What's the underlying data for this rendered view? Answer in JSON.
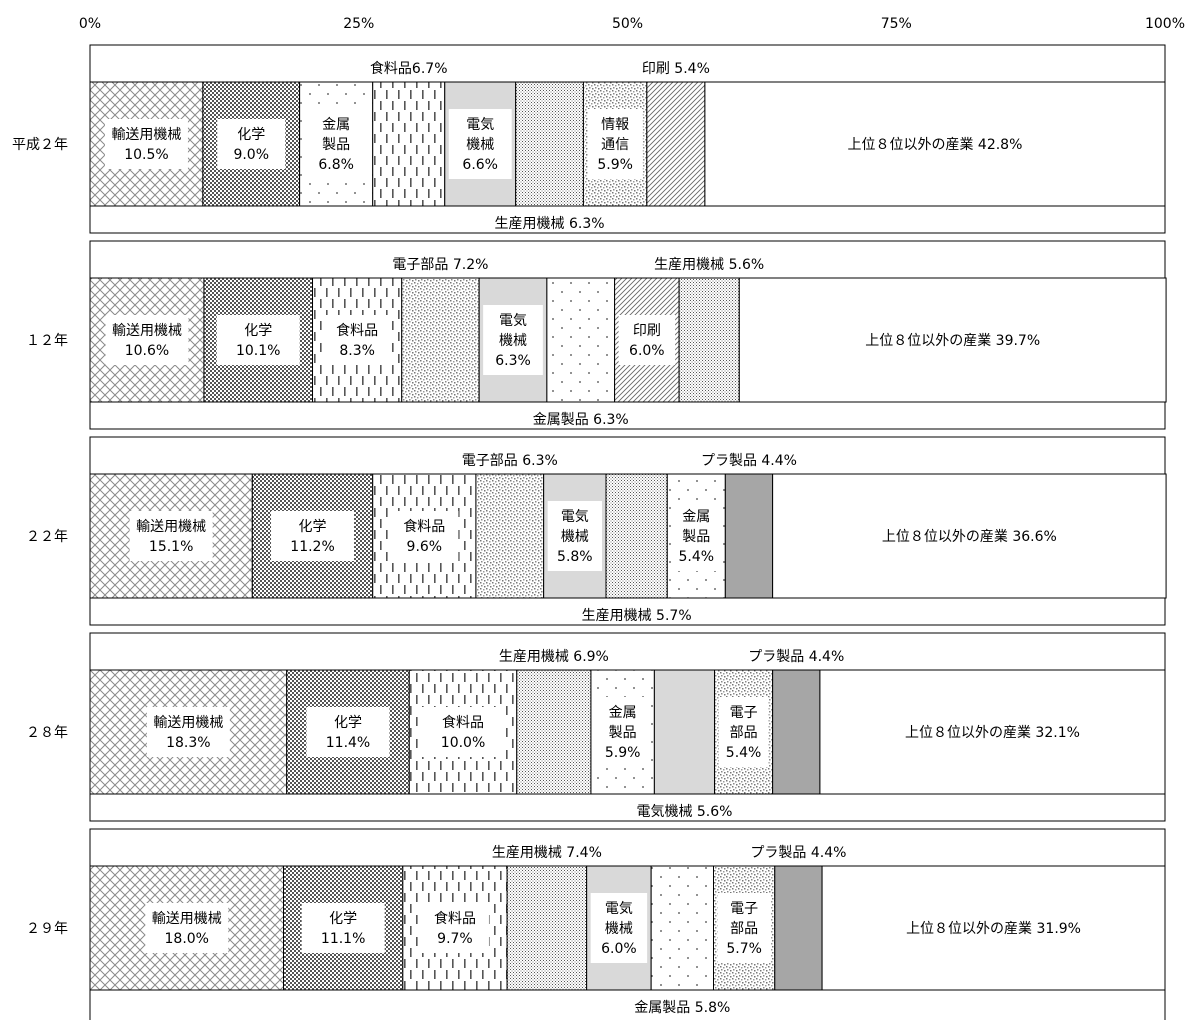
{
  "chart_data": {
    "type": "bar",
    "orientation": "horizontal",
    "stacked": true,
    "x_ticks": [
      "0%",
      "25%",
      "50%",
      "75%",
      "100%"
    ],
    "xlim": [
      0,
      100
    ],
    "grid": false,
    "legend": "none",
    "rows": [
      {
        "label": "平成２年",
        "segments": [
          {
            "name": "輸送用機械",
            "value": 10.5,
            "pattern": "diamond",
            "label_lines": [
              "輸送用機械",
              "10.5%"
            ]
          },
          {
            "name": "化学",
            "value": 9.0,
            "pattern": "checker",
            "label_lines": [
              "化学",
              "9.0%"
            ]
          },
          {
            "name": "金属製品",
            "value": 6.8,
            "pattern": "sparse",
            "label_lines": [
              "金属",
              "製品",
              "6.8%"
            ]
          },
          {
            "name": "食料品",
            "value": 6.7,
            "pattern": "dash",
            "label_lines": [],
            "outside_label": "食料品6.7%",
            "outside_pos": "top"
          },
          {
            "name": "電気機械",
            "value": 6.6,
            "pattern": "gray",
            "label_lines": [
              "電気",
              "機械",
              "6.6%"
            ]
          },
          {
            "name": "生産用機械",
            "value": 6.3,
            "pattern": "finedot",
            "label_lines": [],
            "outside_label": "生産用機械 6.3%",
            "outside_pos": "bottom"
          },
          {
            "name": "情報通信",
            "value": 5.9,
            "pattern": "speckle",
            "label_lines": [
              "情報",
              "通信",
              "5.9%"
            ]
          },
          {
            "name": "印刷",
            "value": 5.4,
            "pattern": "diagonal",
            "label_lines": [],
            "outside_label": "印刷 5.4%",
            "outside_pos": "top"
          },
          {
            "name": "上位８位以外の産業",
            "value": 42.8,
            "pattern": "white",
            "label_lines": [
              "上位８位以外の産業 42.8%"
            ],
            "single_line": true
          }
        ]
      },
      {
        "label": "１２年",
        "segments": [
          {
            "name": "輸送用機械",
            "value": 10.6,
            "pattern": "diamond",
            "label_lines": [
              "輸送用機械",
              "10.6%"
            ]
          },
          {
            "name": "化学",
            "value": 10.1,
            "pattern": "checker",
            "label_lines": [
              "化学",
              "10.1%"
            ]
          },
          {
            "name": "食料品",
            "value": 8.3,
            "pattern": "dash",
            "label_lines": [
              "食料品",
              "8.3%"
            ]
          },
          {
            "name": "電子部品",
            "value": 7.2,
            "pattern": "speckle",
            "label_lines": [],
            "outside_label": "電子部品 7.2%",
            "outside_pos": "top"
          },
          {
            "name": "電気機械",
            "value": 6.3,
            "pattern": "gray",
            "label_lines": [
              "電気",
              "機械",
              "6.3%"
            ]
          },
          {
            "name": "金属製品",
            "value": 6.3,
            "pattern": "sparse",
            "label_lines": [],
            "outside_label": "金属製品 6.3%",
            "outside_pos": "bottom"
          },
          {
            "name": "印刷",
            "value": 6.0,
            "pattern": "diagonal",
            "label_lines": [
              "印刷",
              "6.0%"
            ]
          },
          {
            "name": "生産用機械",
            "value": 5.6,
            "pattern": "finedot",
            "label_lines": [],
            "outside_label": "生産用機械 5.6%",
            "outside_pos": "top"
          },
          {
            "name": "上位８位以外の産業",
            "value": 39.7,
            "pattern": "white",
            "label_lines": [
              "上位８位以外の産業 39.7%"
            ],
            "single_line": true
          }
        ]
      },
      {
        "label": "２２年",
        "segments": [
          {
            "name": "輸送用機械",
            "value": 15.1,
            "pattern": "diamond",
            "label_lines": [
              "輸送用機械",
              "15.1%"
            ]
          },
          {
            "name": "化学",
            "value": 11.2,
            "pattern": "checker",
            "label_lines": [
              "化学",
              "11.2%"
            ]
          },
          {
            "name": "食料品",
            "value": 9.6,
            "pattern": "dash",
            "label_lines": [
              "食料品",
              "9.6%"
            ]
          },
          {
            "name": "電子部品",
            "value": 6.3,
            "pattern": "speckle",
            "label_lines": [],
            "outside_label": "電子部品 6.3%",
            "outside_pos": "top"
          },
          {
            "name": "電気機械",
            "value": 5.8,
            "pattern": "gray",
            "label_lines": [
              "電気",
              "機械",
              "5.8%"
            ]
          },
          {
            "name": "生産用機械",
            "value": 5.7,
            "pattern": "finedot",
            "label_lines": [],
            "outside_label": "生産用機械 5.7%",
            "outside_pos": "bottom"
          },
          {
            "name": "金属製品",
            "value": 5.4,
            "pattern": "sparse",
            "label_lines": [
              "金属",
              "製品",
              "5.4%"
            ]
          },
          {
            "name": "プラ製品",
            "value": 4.4,
            "pattern": "darkgray",
            "label_lines": [],
            "outside_label": "プラ製品 4.4%",
            "outside_pos": "top"
          },
          {
            "name": "上位８位以外の産業",
            "value": 36.6,
            "pattern": "white",
            "label_lines": [
              "上位８位以外の産業 36.6%"
            ],
            "single_line": true
          }
        ]
      },
      {
        "label": "２８年",
        "segments": [
          {
            "name": "輸送用機械",
            "value": 18.3,
            "pattern": "diamond",
            "label_lines": [
              "輸送用機械",
              "18.3%"
            ]
          },
          {
            "name": "化学",
            "value": 11.4,
            "pattern": "checker",
            "label_lines": [
              "化学",
              "11.4%"
            ]
          },
          {
            "name": "食料品",
            "value": 10.0,
            "pattern": "dash",
            "label_lines": [
              "食料品",
              "10.0%"
            ]
          },
          {
            "name": "生産用機械",
            "value": 6.9,
            "pattern": "finedot",
            "label_lines": [],
            "outside_label": "生産用機械 6.9%",
            "outside_pos": "top"
          },
          {
            "name": "金属製品",
            "value": 5.9,
            "pattern": "sparse",
            "label_lines": [
              "金属",
              "製品",
              "5.9%"
            ]
          },
          {
            "name": "電気機械",
            "value": 5.6,
            "pattern": "gray",
            "label_lines": [],
            "outside_label": "電気機械 5.6%",
            "outside_pos": "bottom"
          },
          {
            "name": "電子部品",
            "value": 5.4,
            "pattern": "speckle",
            "label_lines": [
              "電子",
              "部品",
              "5.4%"
            ]
          },
          {
            "name": "プラ製品",
            "value": 4.4,
            "pattern": "darkgray",
            "label_lines": [],
            "outside_label": "プラ製品 4.4%",
            "outside_pos": "top"
          },
          {
            "name": "上位８位以外の産業",
            "value": 32.1,
            "pattern": "white",
            "label_lines": [
              "上位８位以外の産業 32.1%"
            ],
            "single_line": true
          }
        ]
      },
      {
        "label": "２９年",
        "segments": [
          {
            "name": "輸送用機械",
            "value": 18.0,
            "pattern": "diamond",
            "label_lines": [
              "輸送用機械",
              "18.0%"
            ]
          },
          {
            "name": "化学",
            "value": 11.1,
            "pattern": "checker",
            "label_lines": [
              "化学",
              "11.1%"
            ]
          },
          {
            "name": "食料品",
            "value": 9.7,
            "pattern": "dash",
            "label_lines": [
              "食料品",
              "9.7%"
            ]
          },
          {
            "name": "生産用機械",
            "value": 7.4,
            "pattern": "finedot",
            "label_lines": [],
            "outside_label": "生産用機械 7.4%",
            "outside_pos": "top"
          },
          {
            "name": "電気機械",
            "value": 6.0,
            "pattern": "gray",
            "label_lines": [
              "電気",
              "機械",
              "6.0%"
            ]
          },
          {
            "name": "金属製品",
            "value": 5.8,
            "pattern": "sparse",
            "label_lines": [],
            "outside_label": "金属製品 5.8%",
            "outside_pos": "bottom"
          },
          {
            "name": "電子部品",
            "value": 5.7,
            "pattern": "speckle",
            "label_lines": [
              "電子",
              "部品",
              "5.7%"
            ]
          },
          {
            "name": "プラ製品",
            "value": 4.4,
            "pattern": "darkgray",
            "label_lines": [],
            "outside_label": "プラ製品 4.4%",
            "outside_pos": "top"
          },
          {
            "name": "上位８位以外の産業",
            "value": 31.9,
            "pattern": "white",
            "label_lines": [
              "上位８位以外の産業 31.9%"
            ],
            "single_line": true
          }
        ]
      }
    ]
  }
}
